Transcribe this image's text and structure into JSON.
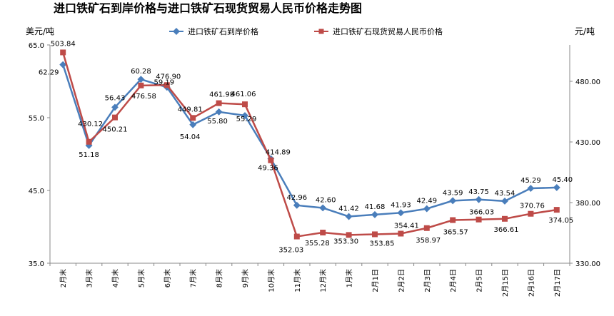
{
  "chart_data": {
    "type": "line",
    "title": "进口铁矿石到岸价格与进口铁矿石现货贸易人民币价格走势图",
    "left_unit": "美元/吨",
    "right_unit": "元/吨",
    "categories": [
      "2月末",
      "3月末",
      "4月末",
      "5月末",
      "6月末",
      "7月末",
      "8月末",
      "9月末",
      "10月末",
      "11月末",
      "12月末",
      "1月末",
      "2月1日",
      "2月2日",
      "2月3日",
      "2月4日",
      "2月5日",
      "2月15日",
      "2月16日",
      "2月17日"
    ],
    "left_axis": {
      "min": 35.0,
      "max": 65.0,
      "ticks": [
        "35.0",
        "45.0",
        "55.0",
        "65.0"
      ]
    },
    "right_axis": {
      "min": 330,
      "max": 510,
      "ticks": [
        "330.00",
        "380.00",
        "430.00",
        "480.00"
      ]
    },
    "series": [
      {
        "name": "进口铁矿石到岸价格",
        "axis": "left",
        "color": "#4a7ebb",
        "marker": "diamond",
        "values": [
          62.29,
          51.18,
          56.43,
          60.28,
          59.19,
          54.04,
          55.8,
          55.29,
          49.36,
          42.96,
          42.6,
          41.42,
          41.68,
          41.93,
          42.49,
          43.59,
          43.75,
          43.54,
          45.29,
          45.4
        ],
        "labels": [
          "62.29",
          "51.18",
          "56.43",
          "60.28",
          "59.19",
          "54.04",
          "55.80",
          "55.29",
          "49.36",
          "42.96",
          "42.60",
          "41.42",
          "41.68",
          "41.93",
          "42.49",
          "43.59",
          "43.75",
          "43.54",
          "45.29",
          "45.40"
        ]
      },
      {
        "name": "进口铁矿石现货贸易人民币价格",
        "axis": "right",
        "color": "#be4b48",
        "marker": "square",
        "values": [
          503.84,
          430.12,
          450.21,
          476.58,
          476.9,
          449.81,
          461.98,
          461.06,
          414.89,
          352.03,
          355.28,
          353.3,
          353.85,
          354.41,
          358.97,
          365.57,
          366.03,
          366.61,
          370.76,
          374.05
        ],
        "labels": [
          "503.84",
          "430.12",
          "450.21",
          "476.58",
          "476.90",
          "449.81",
          "461.98",
          "461.06",
          "414.89",
          "352.03",
          "355.28",
          "353.30",
          "353.85",
          "354.41",
          "358.97",
          "365.57",
          "366.03",
          "366.61",
          "370.76",
          "374.05"
        ]
      }
    ],
    "grid": false,
    "legend_position": "top"
  }
}
